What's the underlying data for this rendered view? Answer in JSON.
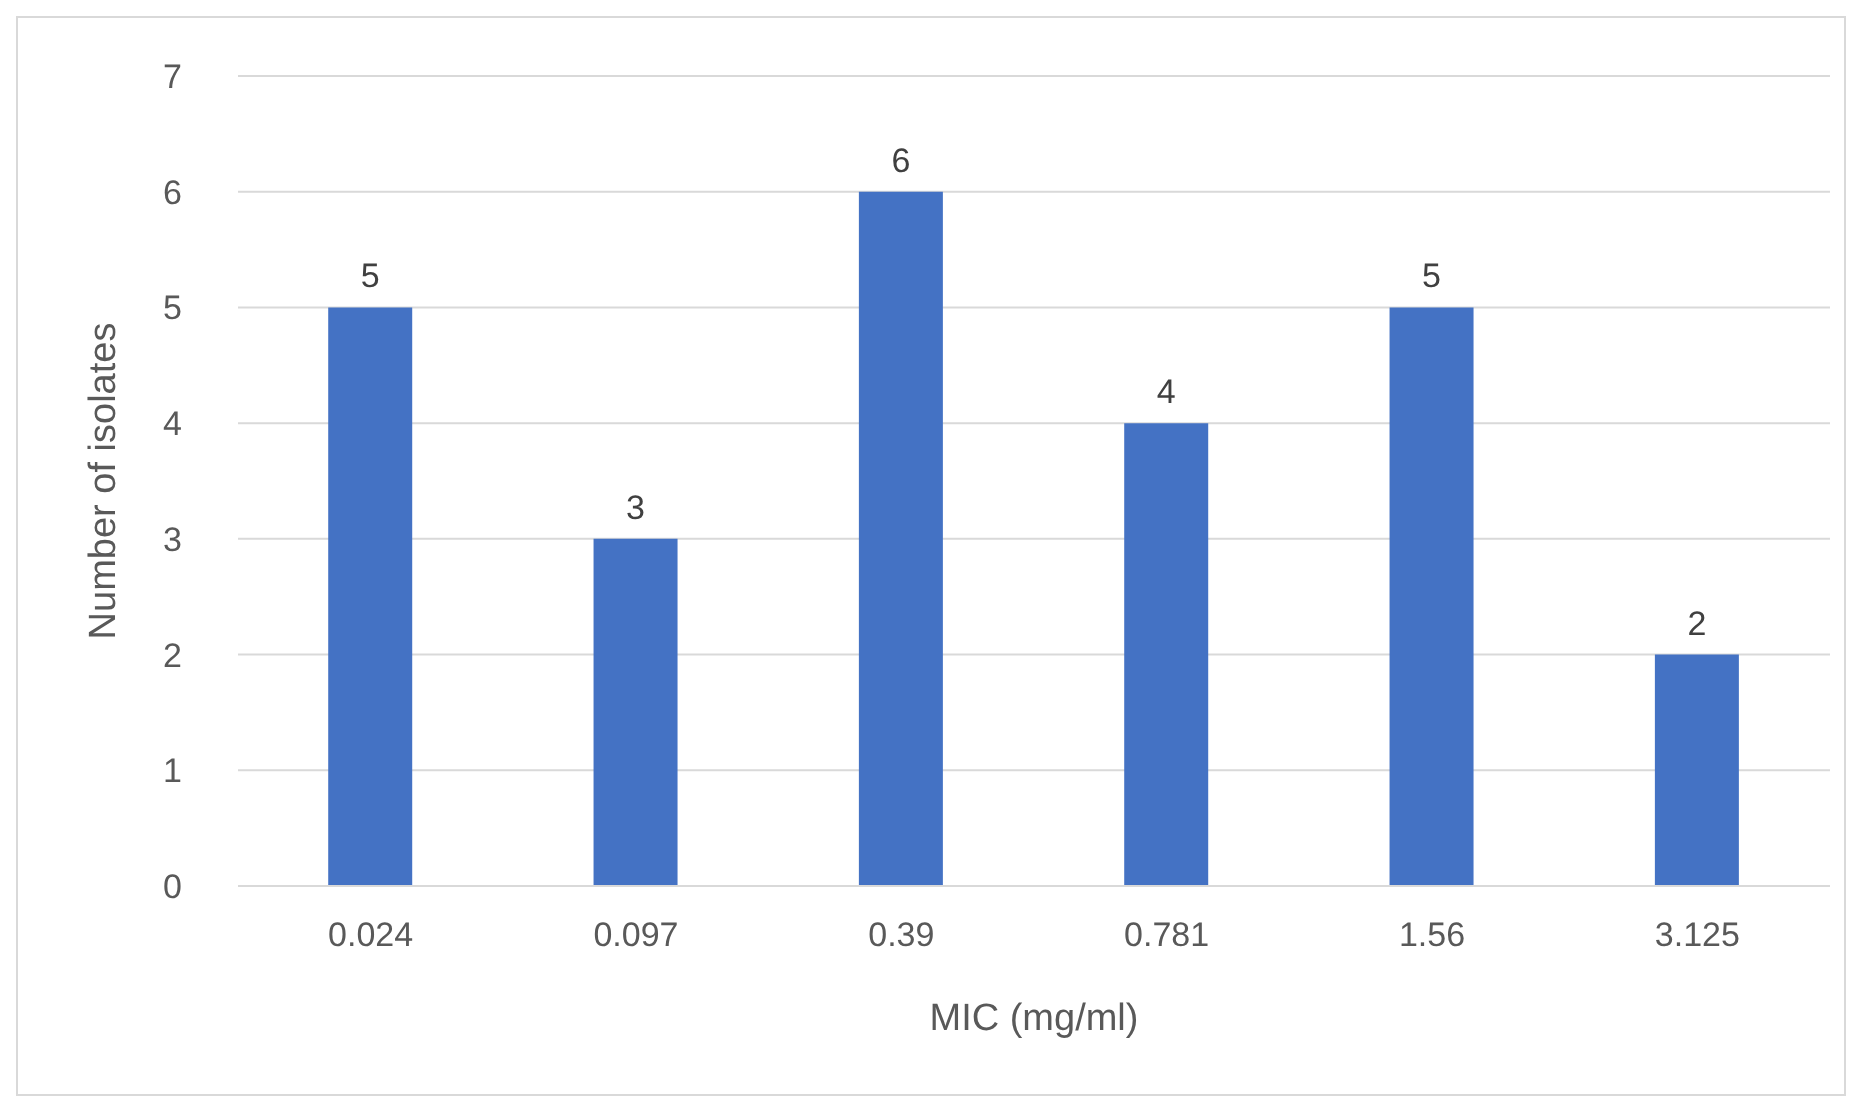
{
  "chart_data": {
    "type": "bar",
    "xlabel": "MIC (mg/ml)",
    "ylabel": "Number of isolates",
    "categories": [
      "0.024",
      "0.097",
      "0.39",
      "0.781",
      "1.56",
      "3.125"
    ],
    "values": [
      5,
      3,
      6,
      4,
      5,
      2
    ],
    "color": "#4472c4",
    "ylim": [
      0,
      7
    ],
    "yticks": [
      0,
      1,
      2,
      3,
      4,
      5,
      6,
      7
    ],
    "grid": "y",
    "data_labels": true
  }
}
